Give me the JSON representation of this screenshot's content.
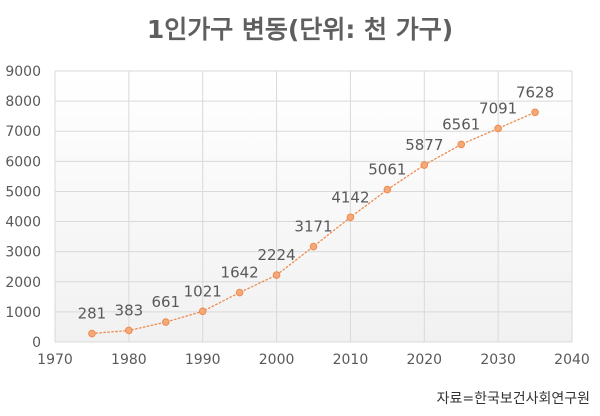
{
  "chart_data": {
    "type": "scatter",
    "title": "1인가구 변동(단위: 천 가구)",
    "source": "자료=한국보건사회연구원",
    "x": [
      1975,
      1980,
      1985,
      1990,
      1995,
      2000,
      2005,
      2010,
      2015,
      2020,
      2025,
      2030,
      2035
    ],
    "y": [
      281,
      383,
      661,
      1021,
      1642,
      2224,
      3171,
      4142,
      5061,
      5877,
      6561,
      7091,
      7628
    ],
    "data_labels": [
      "281",
      "383",
      "661",
      "1021",
      "1642",
      "2224",
      "3171",
      "4142",
      "5061",
      "5877",
      "6561",
      "7091",
      "7628"
    ],
    "xlim": [
      1970,
      2040
    ],
    "ylim": [
      0,
      9000
    ],
    "x_ticks": [
      1970,
      1980,
      1990,
      2000,
      2010,
      2020,
      2030,
      2040
    ],
    "y_ticks": [
      0,
      1000,
      2000,
      3000,
      4000,
      5000,
      6000,
      7000,
      8000,
      9000
    ],
    "grid": true,
    "line_style": "dotted",
    "colors": {
      "series": "#ed8b4e",
      "marker_fill": "#f4a979",
      "grid": "#d9d9d9",
      "title": "#5f5f5f"
    }
  }
}
